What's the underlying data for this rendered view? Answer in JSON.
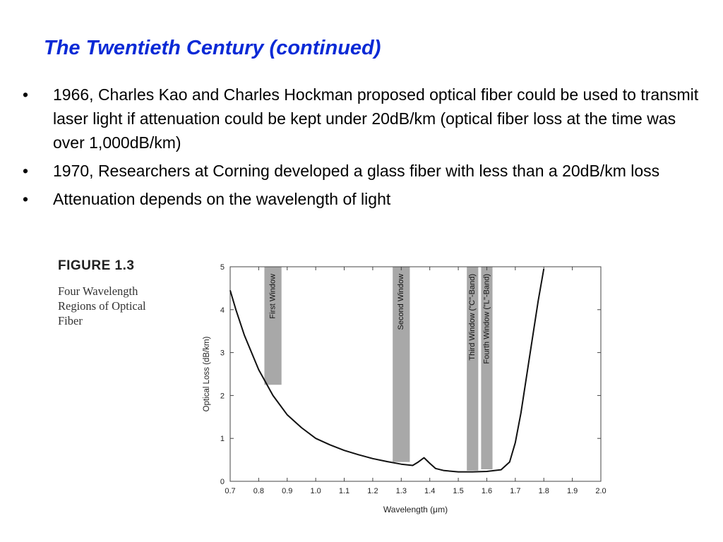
{
  "slide": {
    "title": "The Twentieth Century (continued)",
    "bullet_symbol": "•",
    "bullets": [
      "1966, Charles Kao and Charles Hockman proposed optical fiber could be used to transmit laser light if attenuation could be kept under 20dB/km (optical fiber loss at the time was over 1,000dB/km)",
      "1970, Researchers at Corning developed a glass fiber with less than a 20dB/km loss",
      "Attenuation depends on the wavelength of light"
    ]
  },
  "figure": {
    "label": "FIGURE 1.3",
    "caption": "Four Wavelength Regions of Optical Fiber"
  },
  "chart_data": {
    "type": "line",
    "xlabel": "Wavelength (μm)",
    "ylabel": "Optical Loss (dB/km)",
    "xlim": [
      0.7,
      2.0
    ],
    "ylim": [
      0,
      5
    ],
    "xticks": [
      "0.7",
      "0.8",
      "0.9",
      "1.0",
      "1.1",
      "1.2",
      "1.3",
      "1.4",
      "1.5",
      "1.6",
      "1.7",
      "1.8",
      "1.9",
      "2.0"
    ],
    "yticks": [
      "0",
      "1",
      "2",
      "3",
      "4",
      "5"
    ],
    "grid": false,
    "series": [
      {
        "x": [
          0.7,
          0.72,
          0.75,
          0.8,
          0.85,
          0.9,
          0.95,
          1.0,
          1.05,
          1.1,
          1.15,
          1.2,
          1.25,
          1.3,
          1.34,
          1.36,
          1.38,
          1.4,
          1.42,
          1.45,
          1.5,
          1.55,
          1.6,
          1.65,
          1.68,
          1.7,
          1.72,
          1.75,
          1.78,
          1.8
        ],
        "y": [
          4.45,
          4.0,
          3.4,
          2.6,
          2.0,
          1.55,
          1.25,
          1.0,
          0.85,
          0.72,
          0.62,
          0.53,
          0.46,
          0.4,
          0.37,
          0.45,
          0.55,
          0.42,
          0.3,
          0.25,
          0.22,
          0.22,
          0.23,
          0.27,
          0.45,
          0.9,
          1.6,
          2.9,
          4.2,
          4.95
        ]
      }
    ],
    "bands": [
      {
        "label": "First Window",
        "x0": 0.82,
        "x1": 0.88,
        "y0": 2.25,
        "y1": 5
      },
      {
        "label": "Second Window",
        "x0": 1.27,
        "x1": 1.33,
        "y0": 0.45,
        "y1": 5
      },
      {
        "label": "Third Window (\"C\"-Band)",
        "x0": 1.53,
        "x1": 1.57,
        "y0": 0.25,
        "y1": 5
      },
      {
        "label": "Fourth Window (\"L\"-Band)",
        "x0": 1.58,
        "x1": 1.62,
        "y0": 0.28,
        "y1": 5
      },
      {
        "label": "",
        "x0": 0,
        "x1": 0,
        "y0": 0,
        "y1": 0
      }
    ]
  }
}
